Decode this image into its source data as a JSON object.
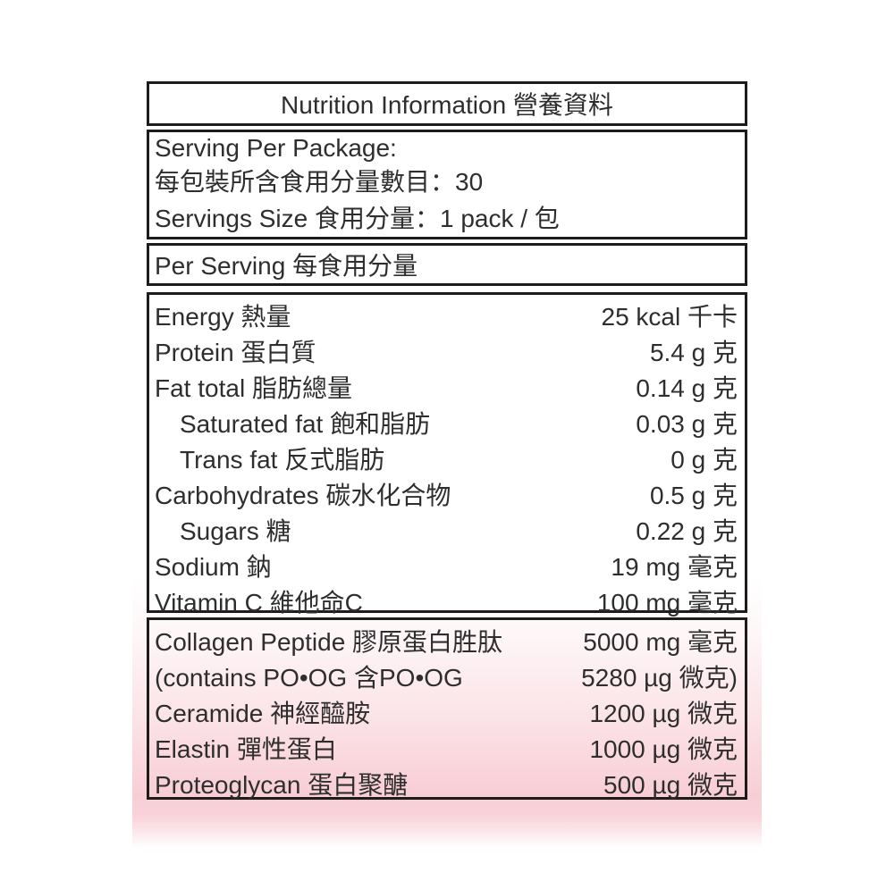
{
  "title": "Nutrition Information 營養資料",
  "serving": {
    "line1": "Serving Per Package:",
    "line2": "每包裝所含食用分量數目：30",
    "line3": "Servings Size 食用分量：1 pack / 包"
  },
  "per_serving": "Per Serving 每食用分量",
  "nutrients": [
    {
      "label": "Energy 熱量",
      "value": "25 kcal 千卡",
      "indent": false
    },
    {
      "label": "Protein 蛋白質",
      "value": "5.4 g 克",
      "indent": false
    },
    {
      "label": "Fat total 脂肪總量",
      "value": "0.14 g 克",
      "indent": false
    },
    {
      "label": "Saturated fat 飽和脂肪",
      "value": "0.03 g 克",
      "indent": true
    },
    {
      "label": "Trans fat 反式脂肪",
      "value": "0 g 克",
      "indent": true
    },
    {
      "label": "Carbohydrates 碳水化合物",
      "value": "0.5 g 克",
      "indent": false
    },
    {
      "label": "Sugars 糖",
      "value": "0.22 g 克",
      "indent": true
    },
    {
      "label": "Sodium 鈉",
      "value": "19 mg 毫克",
      "indent": false
    },
    {
      "label": "Vitamin C 維他命C",
      "value": "100 mg 毫克",
      "indent": false
    }
  ],
  "actives": [
    {
      "label": "Collagen Peptide 膠原蛋白胜肽",
      "value": "5000 mg 毫克"
    },
    {
      "label": "(contains PO•OG 含PO•OG",
      "value": "5280 µg 微克)"
    },
    {
      "label": "Ceramide 神經醯胺",
      "value": "1200 µg 微克"
    },
    {
      "label": "Elastin 彈性蛋白",
      "value": "1000 µg 微克"
    },
    {
      "label": "Proteoglycan 蛋白聚醣",
      "value": "500 µg 微克"
    }
  ],
  "colors": {
    "accent_pink": "#f8ced5",
    "border": "#1e1b1b",
    "text": "#2e2e2e"
  }
}
